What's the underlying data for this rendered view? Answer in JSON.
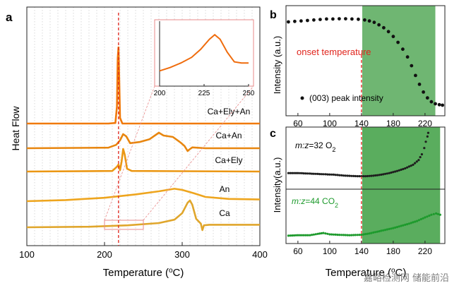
{
  "chart_data": [
    {
      "panel": "a",
      "type": "line",
      "xlabel": "Temperature (°C)",
      "ylabel": "Heat Flow",
      "xlim": [
        100,
        400
      ],
      "xticks": [
        100,
        200,
        300,
        400
      ],
      "grid": "vertical dotted",
      "marker_line": {
        "x": 218,
        "style": "dashed",
        "color": "#e0241c"
      },
      "series": [
        {
          "name": "Ca+Ely+An",
          "color": "#f07a0c",
          "baseline": 1.0,
          "points": [
            [
              100,
              1.0
            ],
            [
              205,
              1.0
            ],
            [
              214,
              1.02
            ],
            [
              216,
              1.6
            ],
            [
              217,
              3.3
            ],
            [
              218,
              3.7
            ],
            [
              219,
              2.5
            ],
            [
              220,
              1.2
            ],
            [
              223,
              1.0
            ],
            [
              300,
              1.0
            ],
            [
              400,
              1.0
            ]
          ]
        },
        {
          "name": "Ca+An",
          "color": "#e8860f",
          "baseline": 0.0,
          "points": [
            [
              100,
              0.0
            ],
            [
              205,
              0.02
            ],
            [
              215,
              0.12
            ],
            [
              220,
              0.28
            ],
            [
              224,
              0.5
            ],
            [
              228,
              0.42
            ],
            [
              233,
              0.18
            ],
            [
              245,
              0.22
            ],
            [
              258,
              0.32
            ],
            [
              270,
              0.55
            ],
            [
              276,
              0.45
            ],
            [
              288,
              0.4
            ],
            [
              298,
              0.2
            ],
            [
              303,
              0.08
            ],
            [
              307,
              -0.1
            ],
            [
              309,
              -0.05
            ],
            [
              313,
              0.03
            ],
            [
              330,
              0.0
            ],
            [
              400,
              0.0
            ]
          ]
        },
        {
          "name": "Ca+Ely",
          "color": "#eb9714",
          "baseline": -0.95,
          "points": [
            [
              100,
              -0.95
            ],
            [
              210,
              -0.93
            ],
            [
              216,
              -0.78
            ],
            [
              218,
              -0.7
            ],
            [
              220,
              -0.9
            ],
            [
              222,
              -0.6
            ],
            [
              224,
              -0.15
            ],
            [
              226,
              -0.35
            ],
            [
              229,
              -0.85
            ],
            [
              235,
              -0.93
            ],
            [
              400,
              -0.95
            ]
          ]
        },
        {
          "name": "An",
          "color": "#eea51e",
          "baseline": -1.9,
          "points": [
            [
              100,
              -1.9
            ],
            [
              150,
              -1.86
            ],
            [
              200,
              -1.78
            ],
            [
              240,
              -1.66
            ],
            [
              270,
              -1.55
            ],
            [
              290,
              -1.46
            ],
            [
              300,
              -1.5
            ],
            [
              315,
              -1.62
            ],
            [
              330,
              -1.75
            ],
            [
              360,
              -1.82
            ],
            [
              400,
              -1.84
            ]
          ]
        },
        {
          "name": "Ca",
          "color": "#e0a62c",
          "baseline": -2.85,
          "points": [
            [
              100,
              -2.85
            ],
            [
              180,
              -2.83
            ],
            [
              230,
              -2.78
            ],
            [
              270,
              -2.7
            ],
            [
              290,
              -2.58
            ],
            [
              300,
              -2.35
            ],
            [
              307,
              -1.98
            ],
            [
              310,
              -1.9
            ],
            [
              313,
              -2.05
            ],
            [
              318,
              -2.55
            ],
            [
              324,
              -2.72
            ],
            [
              326,
              -2.95
            ],
            [
              328,
              -2.78
            ],
            [
              335,
              -2.76
            ],
            [
              400,
              -2.76
            ]
          ]
        }
      ],
      "zoom_box": {
        "x_range": [
          200,
          250
        ]
      },
      "inset": {
        "type": "line",
        "xticks": [
          200,
          225,
          250
        ],
        "xlim": [
          200,
          250
        ],
        "color": "#ef6c0d",
        "points": [
          [
            200,
            0.22
          ],
          [
            206,
            0.28
          ],
          [
            212,
            0.36
          ],
          [
            218,
            0.46
          ],
          [
            223,
            0.6
          ],
          [
            228,
            0.78
          ],
          [
            231,
            0.86
          ],
          [
            234,
            0.78
          ],
          [
            238,
            0.55
          ],
          [
            242,
            0.38
          ],
          [
            246,
            0.36
          ],
          [
            250,
            0.36
          ]
        ]
      }
    },
    {
      "panel": "b",
      "type": "scatter",
      "ylabel": "Intensity (a.u.)",
      "xticks": [
        60,
        100,
        140,
        180,
        220
      ],
      "xlim": [
        45,
        245
      ],
      "ylim": [
        0,
        1
      ],
      "legend": "(003) peak intensity",
      "annotation": "onset temperature",
      "onset_x": 140,
      "shade": {
        "from": 141,
        "to": 233,
        "color": "#6fb672"
      },
      "points": [
        [
          48,
          0.92
        ],
        [
          56,
          0.925
        ],
        [
          64,
          0.93
        ],
        [
          72,
          0.935
        ],
        [
          80,
          0.94
        ],
        [
          88,
          0.945
        ],
        [
          96,
          0.95
        ],
        [
          104,
          0.95
        ],
        [
          112,
          0.952
        ],
        [
          120,
          0.952
        ],
        [
          128,
          0.95
        ],
        [
          136,
          0.947
        ],
        [
          144,
          0.94
        ],
        [
          150,
          0.93
        ],
        [
          156,
          0.915
        ],
        [
          162,
          0.89
        ],
        [
          168,
          0.86
        ],
        [
          174,
          0.82
        ],
        [
          180,
          0.77
        ],
        [
          186,
          0.71
        ],
        [
          192,
          0.64
        ],
        [
          198,
          0.56
        ],
        [
          203,
          0.47
        ],
        [
          208,
          0.37
        ],
        [
          213,
          0.28
        ],
        [
          218,
          0.2
        ],
        [
          223,
          0.14
        ],
        [
          228,
          0.1
        ],
        [
          233,
          0.08
        ],
        [
          238,
          0.07
        ],
        [
          242,
          0.065
        ]
      ]
    },
    {
      "panel": "c",
      "type": "scatter",
      "xlabel": "Temperature (°C)",
      "ylabel": "Intensity(a.u.)",
      "xticks": [
        60,
        100,
        140,
        180,
        220
      ],
      "xlim": [
        45,
        245
      ],
      "ylim": [
        0,
        1
      ],
      "shade": {
        "from": 141,
        "to": 239,
        "color": "#5aad5e"
      },
      "onset_x": 140,
      "series": [
        {
          "name": "m:z=32 O2",
          "ratio": "m:z",
          "value": "=32 O",
          "sub": "2",
          "color": "#1e1e1e",
          "points": [
            [
              48,
              0.2
            ],
            [
              60,
              0.2
            ],
            [
              75,
              0.19
            ],
            [
              90,
              0.18
            ],
            [
              105,
              0.17
            ],
            [
              120,
              0.15
            ],
            [
              135,
              0.14
            ],
            [
              145,
              0.14
            ],
            [
              155,
              0.15
            ],
            [
              165,
              0.17
            ],
            [
              175,
              0.2
            ],
            [
              185,
              0.24
            ],
            [
              195,
              0.29
            ],
            [
              205,
              0.36
            ],
            [
              212,
              0.45
            ],
            [
              216,
              0.56
            ],
            [
              219,
              0.68
            ],
            [
              221,
              0.8
            ],
            [
              223,
              0.9
            ],
            [
              224,
              0.97
            ]
          ]
        },
        {
          "name": "m:z=44 CO2",
          "ratio": "m:z",
          "value": "=44 CO",
          "sub": "2",
          "color": "#1d9a2c",
          "points": [
            [
              48,
              0.05
            ],
            [
              60,
              0.06
            ],
            [
              75,
              0.06
            ],
            [
              85,
              0.09
            ],
            [
              92,
              0.11
            ],
            [
              100,
              0.08
            ],
            [
              110,
              0.07
            ],
            [
              125,
              0.06
            ],
            [
              140,
              0.07
            ],
            [
              150,
              0.1
            ],
            [
              160,
              0.14
            ],
            [
              170,
              0.18
            ],
            [
              180,
              0.22
            ],
            [
              190,
              0.27
            ],
            [
              200,
              0.32
            ],
            [
              210,
              0.38
            ],
            [
              220,
              0.46
            ],
            [
              228,
              0.52
            ],
            [
              234,
              0.55
            ],
            [
              239,
              0.52
            ]
          ]
        }
      ]
    }
  ],
  "watermark": "嘉峪检测网 储能前沿"
}
